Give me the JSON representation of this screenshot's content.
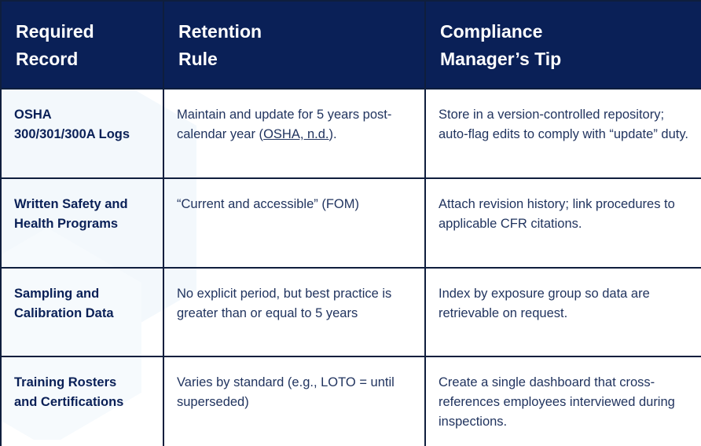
{
  "table": {
    "headers": [
      {
        "line1": "Required",
        "line2": "Record"
      },
      {
        "line1": "Retention",
        "line2": "Rule"
      },
      {
        "line1": "Compliance",
        "line2": "Manager’s Tip"
      }
    ],
    "rows": [
      {
        "record_line1": "OSHA",
        "record_line2": "300/301/300A Logs",
        "rule_text": "Maintain and update for 5 years post-calendar year (",
        "rule_link": "OSHA, n.d.",
        "rule_suffix": ").",
        "tip": "Store in a version-controlled repository; auto-flag edits to comply with “update” duty."
      },
      {
        "record_line1": "Written Safety and",
        "record_line2": "Health Programs",
        "rule_text": "“Current and accessible” (FOM)",
        "tip": "Attach revision history; link procedures to applicable CFR citations."
      },
      {
        "record_line1": "Sampling and",
        "record_line2": "Calibration Data",
        "rule_text": "No explicit period, but best practice is greater than or equal to 5 years",
        "tip": "Index by exposure group so data are retrievable on request."
      },
      {
        "record_line1": "Training Rosters",
        "record_line2": "and Certifications",
        "rule_text": "Varies by standard (e.g., LOTO = until superseded)",
        "tip": "Create a single dashboard that cross-references employees interviewed during inspections."
      }
    ]
  },
  "colors": {
    "header_bg": "#0a2057",
    "header_text": "#ffffff",
    "body_text": "#21345f",
    "border": "#0f1e3d",
    "watermark": "#e8f2fb"
  }
}
